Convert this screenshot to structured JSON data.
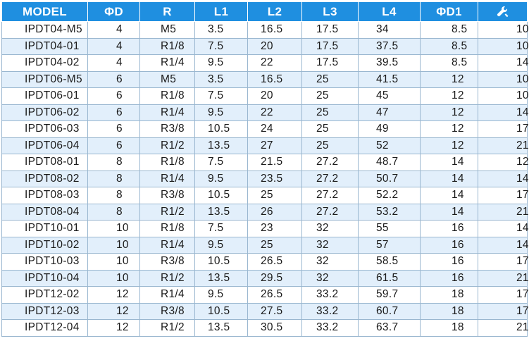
{
  "table": {
    "headers": {
      "model": "MODEL",
      "d": "ΦD",
      "r": "R",
      "l1": "L1",
      "l2": "L2",
      "l3": "L3",
      "l4": "L4",
      "d1": "ΦD1",
      "wrench_icon": "wrench-icon"
    },
    "header_color": "#1f8fe0",
    "alt_row_color": "#e2effb",
    "rows": [
      {
        "model": "IPDT04-M5",
        "d": "4",
        "r": "M5",
        "l1": "3.5",
        "l2": "16.5",
        "l3": "17.5",
        "l4": "34",
        "d1": "8.5",
        "w": "10"
      },
      {
        "model": "IPDT04-01",
        "d": "4",
        "r": "R1/8",
        "l1": "7.5",
        "l2": "20",
        "l3": "17.5",
        "l4": "37.5",
        "d1": "8.5",
        "w": "10"
      },
      {
        "model": "IPDT04-02",
        "d": "4",
        "r": "R1/4",
        "l1": "9.5",
        "l2": "22",
        "l3": "17.5",
        "l4": "39.5",
        "d1": "8.5",
        "w": "14"
      },
      {
        "model": "IPDT06-M5",
        "d": "6",
        "r": "M5",
        "l1": "3.5",
        "l2": "16.5",
        "l3": "25",
        "l4": "41.5",
        "d1": "12",
        "w": "10"
      },
      {
        "model": "IPDT06-01",
        "d": "6",
        "r": "R1/8",
        "l1": "7.5",
        "l2": "20",
        "l3": "25",
        "l4": "45",
        "d1": "12",
        "w": "10"
      },
      {
        "model": "IPDT06-02",
        "d": "6",
        "r": "R1/4",
        "l1": "9.5",
        "l2": "22",
        "l3": "25",
        "l4": "47",
        "d1": "12",
        "w": "14"
      },
      {
        "model": "IPDT06-03",
        "d": "6",
        "r": "R3/8",
        "l1": "10.5",
        "l2": "24",
        "l3": "25",
        "l4": "49",
        "d1": "12",
        "w": "17"
      },
      {
        "model": "IPDT06-04",
        "d": "6",
        "r": "R1/2",
        "l1": "13.5",
        "l2": "27",
        "l3": "25",
        "l4": "52",
        "d1": "12",
        "w": "21"
      },
      {
        "model": "IPDT08-01",
        "d": "8",
        "r": "R1/8",
        "l1": "7.5",
        "l2": "21.5",
        "l3": "27.2",
        "l4": "48.7",
        "d1": "14",
        "w": "12"
      },
      {
        "model": "IPDT08-02",
        "d": "8",
        "r": "R1/4",
        "l1": "9.5",
        "l2": "23.5",
        "l3": "27.2",
        "l4": "50.7",
        "d1": "14",
        "w": "14"
      },
      {
        "model": "IPDT08-03",
        "d": "8",
        "r": "R3/8",
        "l1": "10.5",
        "l2": "25",
        "l3": "27.2",
        "l4": "52.2",
        "d1": "14",
        "w": "17"
      },
      {
        "model": "IPDT08-04",
        "d": "8",
        "r": "R1/2",
        "l1": "13.5",
        "l2": "26",
        "l3": "27.2",
        "l4": "53.2",
        "d1": "14",
        "w": "21"
      },
      {
        "model": "IPDT10-01",
        "d": "10",
        "r": "R1/8",
        "l1": "7.5",
        "l2": "23",
        "l3": "32",
        "l4": "55",
        "d1": "16",
        "w": "14"
      },
      {
        "model": "IPDT10-02",
        "d": "10",
        "r": "R1/4",
        "l1": "9.5",
        "l2": "25",
        "l3": "32",
        "l4": "57",
        "d1": "16",
        "w": "14"
      },
      {
        "model": "IPDT10-03",
        "d": "10",
        "r": "R3/8",
        "l1": "10.5",
        "l2": "26.5",
        "l3": "32",
        "l4": "58.5",
        "d1": "16",
        "w": "17"
      },
      {
        "model": "IPDT10-04",
        "d": "10",
        "r": "R1/2",
        "l1": "13.5",
        "l2": "29.5",
        "l3": "32",
        "l4": "61.5",
        "d1": "16",
        "w": "21"
      },
      {
        "model": "IPDT12-02",
        "d": "12",
        "r": "R1/4",
        "l1": "9.5",
        "l2": "26.5",
        "l3": "33.2",
        "l4": "59.7",
        "d1": "18",
        "w": "17"
      },
      {
        "model": "IPDT12-03",
        "d": "12",
        "r": "R3/8",
        "l1": "10.5",
        "l2": "27.5",
        "l3": "33.2",
        "l4": "60.7",
        "d1": "18",
        "w": "17"
      },
      {
        "model": "IPDT12-04",
        "d": "12",
        "r": "R1/2",
        "l1": "13.5",
        "l2": "30.5",
        "l3": "33.2",
        "l4": "63.7",
        "d1": "18",
        "w": "21"
      }
    ]
  }
}
